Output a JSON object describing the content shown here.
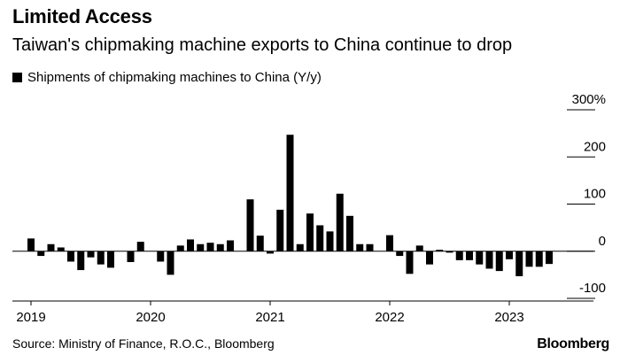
{
  "title": "Limited Access",
  "subtitle": "Taiwan's chipmaking machine exports to China continue to drop",
  "source": "Source: Ministry of Finance, R.O.C., Bloomberg",
  "brand": "Bloomberg",
  "chart_data": {
    "type": "bar",
    "legend": "Shipments of chipmaking machines to China (Y/y)",
    "legend_position": "top-left",
    "bar_color": "#000000",
    "ylim": [
      -100,
      300
    ],
    "y_ticks": [
      {
        "value": 300,
        "label": "300%"
      },
      {
        "value": 200,
        "label": "200"
      },
      {
        "value": 100,
        "label": "100"
      },
      {
        "value": 0,
        "label": "0"
      },
      {
        "value": -100,
        "label": "-100"
      }
    ],
    "x_ticks": [
      {
        "index": 0,
        "label": "2019"
      },
      {
        "index": 12,
        "label": "2020"
      },
      {
        "index": 24,
        "label": "2021"
      },
      {
        "index": 36,
        "label": "2022"
      },
      {
        "index": 48,
        "label": "2023"
      }
    ],
    "categories": [
      "2019-01",
      "2019-02",
      "2019-03",
      "2019-04",
      "2019-05",
      "2019-06",
      "2019-07",
      "2019-08",
      "2019-09",
      "2019-10",
      "2019-11",
      "2019-12",
      "2020-01",
      "2020-02",
      "2020-03",
      "2020-04",
      "2020-05",
      "2020-06",
      "2020-07",
      "2020-08",
      "2020-09",
      "2020-10",
      "2020-11",
      "2020-12",
      "2021-01",
      "2021-02",
      "2021-03",
      "2021-04",
      "2021-05",
      "2021-06",
      "2021-07",
      "2021-08",
      "2021-09",
      "2021-10",
      "2021-11",
      "2021-12",
      "2022-01",
      "2022-02",
      "2022-03",
      "2022-04",
      "2022-05",
      "2022-06",
      "2022-07",
      "2022-08",
      "2022-09",
      "2022-10",
      "2022-11",
      "2022-12",
      "2023-01",
      "2023-02",
      "2023-03",
      "2023-04",
      "2023-05",
      "2023-06",
      "2023-07",
      "2023-08"
    ],
    "values": [
      27,
      -10,
      15,
      8,
      -22,
      -40,
      -13,
      -28,
      -35,
      0,
      -23,
      20,
      0,
      -22,
      -50,
      12,
      25,
      15,
      18,
      15,
      23,
      0,
      110,
      33,
      -5,
      88,
      247,
      15,
      80,
      55,
      42,
      122,
      75,
      15,
      15,
      0,
      34,
      -10,
      -48,
      12,
      -28,
      3,
      -3,
      -19,
      -19,
      -28,
      -37,
      -42,
      -17,
      -53,
      -33,
      -33,
      -27,
      0,
      0,
      0
    ]
  }
}
